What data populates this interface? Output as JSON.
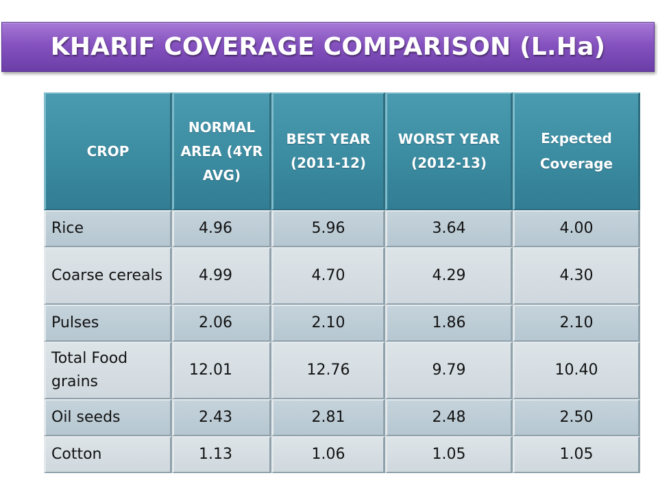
{
  "title": "KHARIF COVERAGE COMPARISON (L.Ha)",
  "colors": {
    "title_banner": "#8552bf",
    "header_fill": "#3a8aa0",
    "row_dark": "#b6c7d1",
    "row_light": "#cfd8de"
  },
  "table": {
    "headers": [
      "CROP",
      "NORMAL AREA (4YR AVG)",
      "BEST YEAR (2011-12)",
      "WORST YEAR (2012-13)",
      "Expected Coverage"
    ],
    "rows": [
      {
        "crop": "Rice",
        "normal": "4.96",
        "best": "5.96",
        "worst": "3.64",
        "expected": "4.00"
      },
      {
        "crop": "Coarse cereals",
        "normal": "4.99",
        "best": "4.70",
        "worst": "4.29",
        "expected": "4.30"
      },
      {
        "crop": "Pulses",
        "normal": "2.06",
        "best": "2.10",
        "worst": "1.86",
        "expected": "2.10"
      },
      {
        "crop": "Total Food grains",
        "normal": "12.01",
        "best": "12.76",
        "worst": "9.79",
        "expected": "10.40"
      },
      {
        "crop": "Oil seeds",
        "normal": "2.43",
        "best": "2.81",
        "worst": "2.48",
        "expected": "2.50"
      },
      {
        "crop": "Cotton",
        "normal": "1.13",
        "best": "1.06",
        "worst": "1.05",
        "expected": "1.05"
      }
    ]
  }
}
